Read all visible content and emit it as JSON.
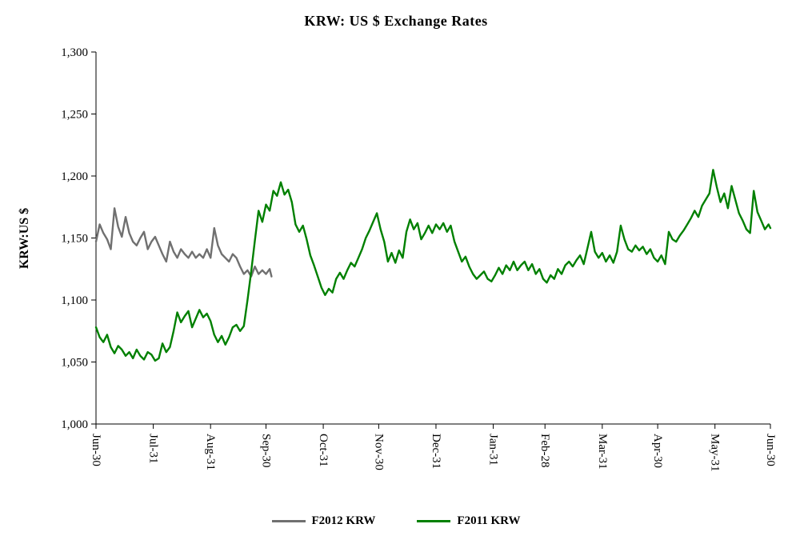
{
  "chart_data": {
    "type": "line",
    "title": "KRW: US $ Exchange Rates",
    "ylabel": "KRW:US $",
    "xlabel": "",
    "ylim": [
      1000,
      1300
    ],
    "x_max": 365,
    "grid": false,
    "legend_position": "bottom",
    "axis_color": "#000000",
    "y_ticks": [
      {
        "value": 1000,
        "label": "1,000"
      },
      {
        "value": 1050,
        "label": "1,050"
      },
      {
        "value": 1100,
        "label": "1,100"
      },
      {
        "value": 1150,
        "label": "1,150"
      },
      {
        "value": 1200,
        "label": "1,200"
      },
      {
        "value": 1250,
        "label": "1,250"
      },
      {
        "value": 1300,
        "label": "1,300"
      }
    ],
    "x_ticks": [
      {
        "day": 0,
        "label": "Jun-30"
      },
      {
        "day": 31,
        "label": "Jul-31"
      },
      {
        "day": 62,
        "label": "Aug-31"
      },
      {
        "day": 92,
        "label": "Sep-30"
      },
      {
        "day": 123,
        "label": "Oct-31"
      },
      {
        "day": 153,
        "label": "Nov-30"
      },
      {
        "day": 184,
        "label": "Dec-31"
      },
      {
        "day": 215,
        "label": "Jan-31"
      },
      {
        "day": 243,
        "label": "Feb-28"
      },
      {
        "day": 274,
        "label": "Mar-31"
      },
      {
        "day": 304,
        "label": "Apr-30"
      },
      {
        "day": 335,
        "label": "May-31"
      },
      {
        "day": 365,
        "label": "Jun-30"
      }
    ],
    "series": [
      {
        "name": "F2012 KRW",
        "color": "#707070",
        "points": [
          [
            0,
            1147
          ],
          [
            2,
            1161
          ],
          [
            4,
            1154
          ],
          [
            6,
            1149
          ],
          [
            8,
            1141
          ],
          [
            10,
            1174
          ],
          [
            12,
            1159
          ],
          [
            14,
            1151
          ],
          [
            16,
            1167
          ],
          [
            18,
            1154
          ],
          [
            20,
            1147
          ],
          [
            22,
            1144
          ],
          [
            24,
            1150
          ],
          [
            26,
            1155
          ],
          [
            28,
            1141
          ],
          [
            30,
            1147
          ],
          [
            32,
            1151
          ],
          [
            34,
            1144
          ],
          [
            36,
            1137
          ],
          [
            38,
            1131
          ],
          [
            40,
            1147
          ],
          [
            42,
            1139
          ],
          [
            44,
            1134
          ],
          [
            46,
            1141
          ],
          [
            48,
            1137
          ],
          [
            50,
            1134
          ],
          [
            52,
            1139
          ],
          [
            54,
            1134
          ],
          [
            56,
            1137
          ],
          [
            58,
            1134
          ],
          [
            60,
            1141
          ],
          [
            62,
            1134
          ],
          [
            64,
            1158
          ],
          [
            66,
            1144
          ],
          [
            68,
            1137
          ],
          [
            70,
            1134
          ],
          [
            72,
            1131
          ],
          [
            74,
            1137
          ],
          [
            76,
            1134
          ],
          [
            78,
            1127
          ],
          [
            80,
            1121
          ],
          [
            82,
            1124
          ],
          [
            84,
            1119
          ],
          [
            86,
            1127
          ],
          [
            88,
            1121
          ],
          [
            90,
            1124
          ],
          [
            92,
            1121
          ],
          [
            94,
            1125
          ],
          [
            95,
            1119
          ]
        ]
      },
      {
        "name": "F2011 KRW",
        "color": "#008000",
        "points": [
          [
            0,
            1078
          ],
          [
            2,
            1070
          ],
          [
            4,
            1066
          ],
          [
            6,
            1072
          ],
          [
            8,
            1062
          ],
          [
            10,
            1057
          ],
          [
            12,
            1063
          ],
          [
            14,
            1060
          ],
          [
            16,
            1055
          ],
          [
            18,
            1058
          ],
          [
            20,
            1053
          ],
          [
            22,
            1060
          ],
          [
            24,
            1055
          ],
          [
            26,
            1052
          ],
          [
            28,
            1058
          ],
          [
            30,
            1056
          ],
          [
            32,
            1051
          ],
          [
            34,
            1053
          ],
          [
            36,
            1065
          ],
          [
            38,
            1058
          ],
          [
            40,
            1062
          ],
          [
            42,
            1075
          ],
          [
            44,
            1090
          ],
          [
            46,
            1082
          ],
          [
            48,
            1087
          ],
          [
            50,
            1091
          ],
          [
            52,
            1078
          ],
          [
            54,
            1085
          ],
          [
            56,
            1092
          ],
          [
            58,
            1086
          ],
          [
            60,
            1089
          ],
          [
            62,
            1083
          ],
          [
            64,
            1072
          ],
          [
            66,
            1066
          ],
          [
            68,
            1071
          ],
          [
            70,
            1064
          ],
          [
            72,
            1070
          ],
          [
            74,
            1078
          ],
          [
            76,
            1080
          ],
          [
            78,
            1075
          ],
          [
            80,
            1079
          ],
          [
            82,
            1100
          ],
          [
            84,
            1123
          ],
          [
            86,
            1148
          ],
          [
            88,
            1172
          ],
          [
            90,
            1163
          ],
          [
            92,
            1177
          ],
          [
            94,
            1172
          ],
          [
            96,
            1188
          ],
          [
            98,
            1184
          ],
          [
            100,
            1195
          ],
          [
            102,
            1185
          ],
          [
            104,
            1189
          ],
          [
            106,
            1179
          ],
          [
            108,
            1161
          ],
          [
            110,
            1155
          ],
          [
            112,
            1160
          ],
          [
            114,
            1149
          ],
          [
            116,
            1136
          ],
          [
            118,
            1128
          ],
          [
            120,
            1119
          ],
          [
            122,
            1110
          ],
          [
            124,
            1104
          ],
          [
            126,
            1109
          ],
          [
            128,
            1106
          ],
          [
            130,
            1117
          ],
          [
            132,
            1122
          ],
          [
            134,
            1117
          ],
          [
            136,
            1124
          ],
          [
            138,
            1130
          ],
          [
            140,
            1127
          ],
          [
            142,
            1134
          ],
          [
            144,
            1141
          ],
          [
            146,
            1150
          ],
          [
            148,
            1156
          ],
          [
            150,
            1163
          ],
          [
            152,
            1170
          ],
          [
            154,
            1157
          ],
          [
            156,
            1147
          ],
          [
            158,
            1131
          ],
          [
            160,
            1138
          ],
          [
            162,
            1130
          ],
          [
            164,
            1140
          ],
          [
            166,
            1134
          ],
          [
            168,
            1155
          ],
          [
            170,
            1165
          ],
          [
            172,
            1157
          ],
          [
            174,
            1162
          ],
          [
            176,
            1149
          ],
          [
            178,
            1154
          ],
          [
            180,
            1160
          ],
          [
            182,
            1154
          ],
          [
            184,
            1161
          ],
          [
            186,
            1157
          ],
          [
            188,
            1162
          ],
          [
            190,
            1155
          ],
          [
            192,
            1160
          ],
          [
            194,
            1147
          ],
          [
            196,
            1139
          ],
          [
            198,
            1131
          ],
          [
            200,
            1135
          ],
          [
            202,
            1127
          ],
          [
            204,
            1121
          ],
          [
            206,
            1117
          ],
          [
            208,
            1120
          ],
          [
            210,
            1123
          ],
          [
            212,
            1117
          ],
          [
            214,
            1115
          ],
          [
            216,
            1120
          ],
          [
            218,
            1126
          ],
          [
            220,
            1121
          ],
          [
            222,
            1128
          ],
          [
            224,
            1124
          ],
          [
            226,
            1131
          ],
          [
            228,
            1124
          ],
          [
            230,
            1128
          ],
          [
            232,
            1131
          ],
          [
            234,
            1124
          ],
          [
            236,
            1129
          ],
          [
            238,
            1121
          ],
          [
            240,
            1125
          ],
          [
            242,
            1117
          ],
          [
            244,
            1114
          ],
          [
            246,
            1120
          ],
          [
            248,
            1117
          ],
          [
            250,
            1125
          ],
          [
            252,
            1121
          ],
          [
            254,
            1128
          ],
          [
            256,
            1131
          ],
          [
            258,
            1127
          ],
          [
            260,
            1132
          ],
          [
            262,
            1136
          ],
          [
            264,
            1129
          ],
          [
            266,
            1142
          ],
          [
            268,
            1155
          ],
          [
            270,
            1139
          ],
          [
            272,
            1134
          ],
          [
            274,
            1138
          ],
          [
            276,
            1131
          ],
          [
            278,
            1136
          ],
          [
            280,
            1130
          ],
          [
            282,
            1139
          ],
          [
            284,
            1160
          ],
          [
            286,
            1149
          ],
          [
            288,
            1141
          ],
          [
            290,
            1139
          ],
          [
            292,
            1144
          ],
          [
            294,
            1140
          ],
          [
            296,
            1143
          ],
          [
            298,
            1137
          ],
          [
            300,
            1141
          ],
          [
            302,
            1134
          ],
          [
            304,
            1131
          ],
          [
            306,
            1136
          ],
          [
            308,
            1129
          ],
          [
            310,
            1155
          ],
          [
            312,
            1149
          ],
          [
            314,
            1147
          ],
          [
            316,
            1152
          ],
          [
            318,
            1156
          ],
          [
            320,
            1161
          ],
          [
            322,
            1166
          ],
          [
            324,
            1172
          ],
          [
            326,
            1167
          ],
          [
            328,
            1176
          ],
          [
            330,
            1181
          ],
          [
            332,
            1186
          ],
          [
            334,
            1205
          ],
          [
            336,
            1191
          ],
          [
            338,
            1179
          ],
          [
            340,
            1186
          ],
          [
            342,
            1174
          ],
          [
            344,
            1192
          ],
          [
            346,
            1181
          ],
          [
            348,
            1170
          ],
          [
            350,
            1164
          ],
          [
            352,
            1157
          ],
          [
            354,
            1154
          ],
          [
            356,
            1188
          ],
          [
            358,
            1171
          ],
          [
            360,
            1164
          ],
          [
            362,
            1157
          ],
          [
            364,
            1161
          ],
          [
            365,
            1158
          ]
        ]
      }
    ]
  }
}
